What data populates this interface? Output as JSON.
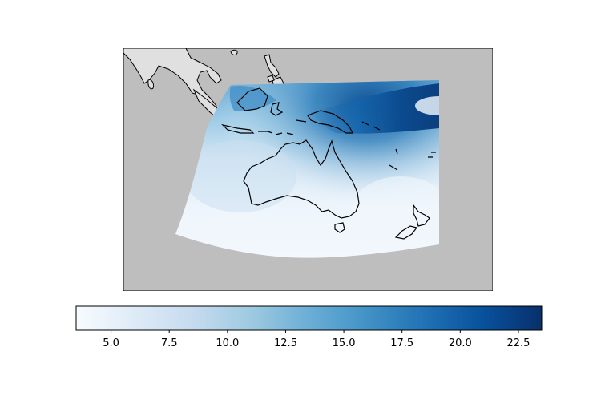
{
  "map": {
    "region": "Australia, New Zealand, Maritime Continent",
    "background_color": "#bebebe",
    "land_outside_color": "#e0e0e0",
    "coastline_color": "#000000"
  },
  "colorbar": {
    "colormap": "Blues",
    "vmin": 3.5,
    "vmax": 23.5,
    "orientation": "horizontal",
    "placement": "bottom",
    "ticks": [
      {
        "value": 5.0,
        "label": "5.0"
      },
      {
        "value": 7.5,
        "label": "7.5"
      },
      {
        "value": 10.0,
        "label": "10.0"
      },
      {
        "value": 12.5,
        "label": "12.5"
      },
      {
        "value": 15.0,
        "label": "15.0"
      },
      {
        "value": 17.5,
        "label": "17.5"
      },
      {
        "value": 20.0,
        "label": "20.0"
      },
      {
        "value": 22.5,
        "label": "22.5"
      }
    ],
    "colors": [
      "#f7fbff",
      "#deebf7",
      "#c6dbef",
      "#9ecae1",
      "#6baed6",
      "#4292c6",
      "#2171b5",
      "#08519c",
      "#08306b"
    ]
  }
}
